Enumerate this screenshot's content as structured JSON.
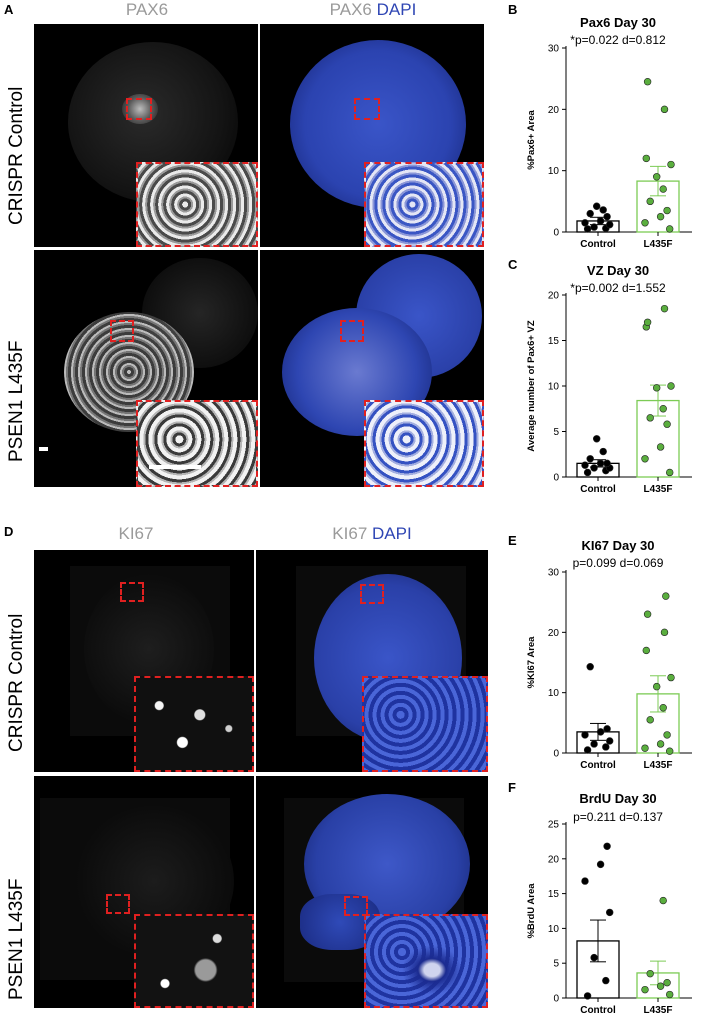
{
  "panelA": {
    "letter": "A",
    "col1_marker": "PAX6",
    "col2_marker": "PAX6",
    "col2_stain": "DAPI",
    "row1_label": "CRISPR Control",
    "row2_label": "PSEN1 L435F"
  },
  "panelD": {
    "letter": "D",
    "col1_marker": "KI67",
    "col2_marker": "KI67",
    "col2_stain": "DAPI",
    "row1_label": "CRISPR Control",
    "row2_label": "PSEN1 L435F"
  },
  "colors": {
    "control_point": "#000000",
    "l435f_point": "#5aae3e",
    "l435f_bar": "#7ccb55",
    "inset_border": "#e02020",
    "dapi_blue": "#2f46b4",
    "marker_gray": "#9a9a9a"
  },
  "chart_data": [
    {
      "letter": "B",
      "type": "bar",
      "title": "Pax6 Day 30",
      "subtitle": "*p=0.022 d=0.812",
      "ylabel": "%Pax6+ Area",
      "xlabel": "",
      "categories": [
        "Control",
        "L435F"
      ],
      "ylim": [
        0,
        30
      ],
      "yticks": [
        0,
        10,
        20,
        30
      ],
      "means": [
        1.8,
        8.3
      ],
      "sem": [
        0.6,
        2.4
      ],
      "points": [
        [
          0.5,
          0.6,
          0.8,
          1.2,
          1.5,
          1.8,
          2.5,
          3.0,
          3.6,
          4.2
        ],
        [
          0.5,
          1.5,
          2.5,
          3.5,
          5.0,
          7.0,
          9.0,
          11.0,
          12.0,
          20.0,
          24.5
        ]
      ],
      "grid": false,
      "legend": "none"
    },
    {
      "letter": "C",
      "type": "bar",
      "title": "VZ Day 30",
      "subtitle": "*p=0.002 d=1.552",
      "ylabel": "Average number of Pax6+ VZ",
      "xlabel": "",
      "categories": [
        "Control",
        "L435F"
      ],
      "ylim": [
        0,
        20
      ],
      "yticks": [
        0,
        5,
        10,
        15,
        20
      ],
      "means": [
        1.5,
        8.4
      ],
      "sem": [
        0.4,
        1.7
      ],
      "points": [
        [
          0.5,
          0.7,
          1.0,
          1.0,
          1.3,
          1.5,
          1.5,
          2.0,
          2.8,
          4.2
        ],
        [
          0.5,
          2.0,
          3.3,
          5.8,
          6.5,
          7.5,
          9.8,
          10.0,
          16.5,
          18.5,
          17.0
        ]
      ],
      "grid": false,
      "legend": "none"
    },
    {
      "letter": "E",
      "type": "bar",
      "title": "KI67 Day 30",
      "subtitle": "p=0.099 d=0.069",
      "ylabel": "%KI67 Area",
      "xlabel": "",
      "categories": [
        "Control",
        "L435F"
      ],
      "ylim": [
        0,
        30
      ],
      "yticks": [
        0,
        10,
        20,
        30
      ],
      "means": [
        3.5,
        9.8
      ],
      "sem": [
        1.4,
        3.0
      ],
      "points": [
        [
          0.5,
          1.0,
          1.5,
          2.0,
          3.0,
          3.5,
          4.0,
          14.3
        ],
        [
          0.3,
          0.8,
          1.5,
          3.0,
          5.5,
          7.5,
          11.0,
          12.5,
          17.0,
          20.0,
          23.0,
          26.0
        ]
      ],
      "grid": false,
      "legend": "none"
    },
    {
      "letter": "F",
      "type": "bar",
      "title": "BrdU Day 30",
      "subtitle": "p=0.211 d=0.137",
      "ylabel": "%BrdU Area",
      "xlabel": "",
      "categories": [
        "Control",
        "L435F"
      ],
      "ylim": [
        0,
        25
      ],
      "yticks": [
        0,
        5,
        10,
        15,
        20,
        25
      ],
      "means": [
        8.2,
        3.6
      ],
      "sem": [
        3.0,
        1.7
      ],
      "points": [
        [
          0.3,
          2.5,
          5.8,
          12.3,
          16.8,
          19.2,
          21.8
        ],
        [
          0.5,
          1.2,
          1.7,
          2.2,
          3.5,
          14.0
        ]
      ],
      "grid": false,
      "legend": "none"
    }
  ]
}
